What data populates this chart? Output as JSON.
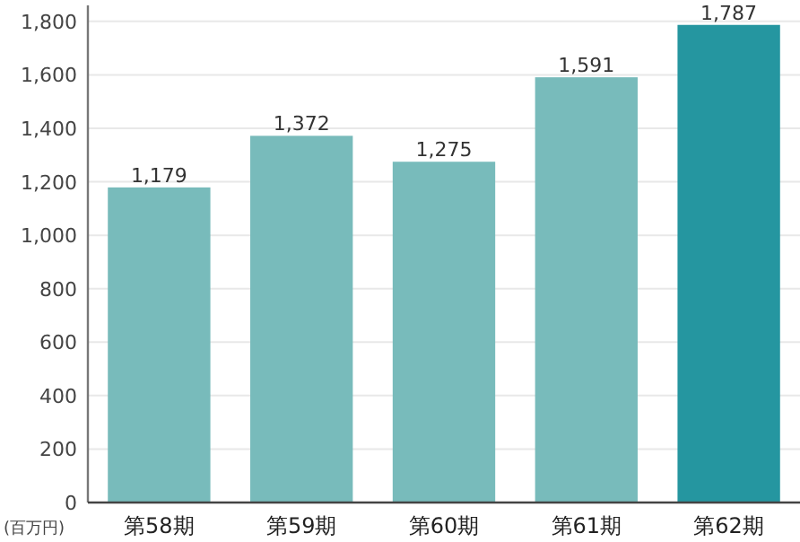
{
  "chart_data": {
    "type": "bar",
    "ylabel": "(百万円)",
    "categories": [
      "第58期",
      "第59期",
      "第60期",
      "第61期",
      "第62期"
    ],
    "values": [
      1179,
      1372,
      1275,
      1591,
      1787
    ],
    "value_labels": [
      "1,179",
      "1,372",
      "1,275",
      "1,591",
      "1,787"
    ],
    "colors": [
      "#78bbbb",
      "#78bbbb",
      "#78bbbb",
      "#78bbbb",
      "#2596a0"
    ],
    "ylim": [
      0,
      1860
    ],
    "yticks": [
      0,
      200,
      400,
      600,
      800,
      {
        "value": 1000,
        "label": "1,000"
      },
      {
        "value": 1200,
        "label": "1,200"
      },
      {
        "value": 1400,
        "label": "1,400"
      },
      {
        "value": 1600,
        "label": "1,600"
      },
      {
        "value": 1800,
        "label": "1,800"
      }
    ],
    "grid": "y"
  }
}
